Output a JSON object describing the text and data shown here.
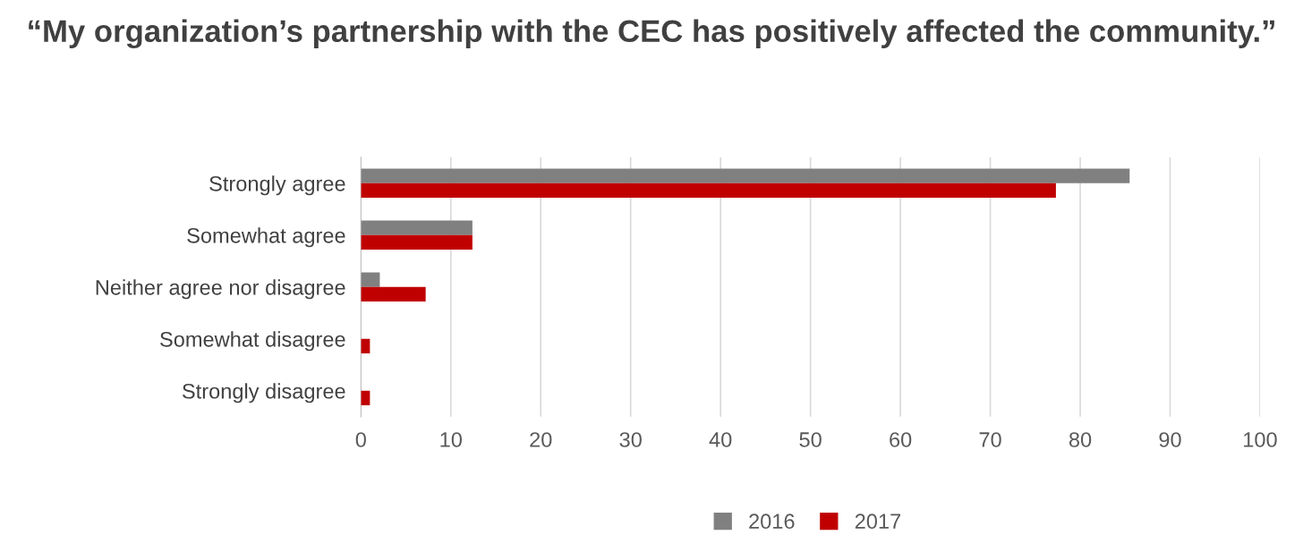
{
  "chart_data": {
    "type": "bar",
    "orientation": "horizontal",
    "title": "“My organization’s partnership with the CEC has positively affected the community.”",
    "categories": [
      "Strongly agree",
      "Somewhat agree",
      "Neither agree nor disagree",
      "Somewhat disagree",
      "Strongly disagree"
    ],
    "series": [
      {
        "name": "2016",
        "color": "#808080",
        "values": [
          85.5,
          12.4,
          2.1,
          0,
          0
        ]
      },
      {
        "name": "2017",
        "color": "#c00000",
        "values": [
          77.3,
          12.4,
          7.2,
          1.0,
          1.0
        ]
      }
    ],
    "xlim": [
      0,
      100
    ],
    "xticks": [
      0,
      10,
      20,
      30,
      40,
      50,
      60,
      70,
      80,
      90,
      100
    ],
    "grid": "x",
    "legend": "bottom"
  }
}
